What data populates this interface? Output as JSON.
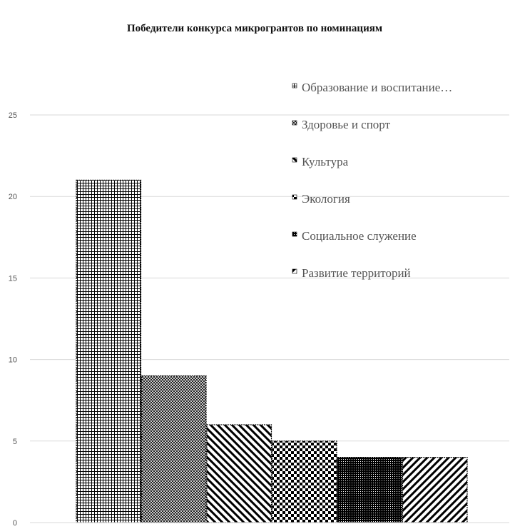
{
  "chart_data": {
    "type": "bar",
    "title": "Победители конкурса микрогрантов по номинациям",
    "xlabel": "",
    "ylabel": "",
    "ylim": [
      0,
      25
    ],
    "yticks": [
      "0",
      "5",
      "10",
      "15",
      "20",
      "25"
    ],
    "grid": true,
    "legend_position": "top-right",
    "series": [
      {
        "name": "Образование и воспитание…",
        "value": 21,
        "pattern": "grid-fine"
      },
      {
        "name": "Здоровье и спорт",
        "value": 9,
        "pattern": "crosshatch"
      },
      {
        "name": "Культура",
        "value": 6,
        "pattern": "diagonal-down"
      },
      {
        "name": "Экология",
        "value": 5,
        "pattern": "checker"
      },
      {
        "name": "Социальное служение",
        "value": 4,
        "pattern": "dense-dots"
      },
      {
        "name": "Развитие территорий",
        "value": 4,
        "pattern": "diagonal-up"
      }
    ]
  },
  "colors": {
    "bar": "#000000",
    "grid": "#d9d9d9",
    "text": "#555555"
  }
}
